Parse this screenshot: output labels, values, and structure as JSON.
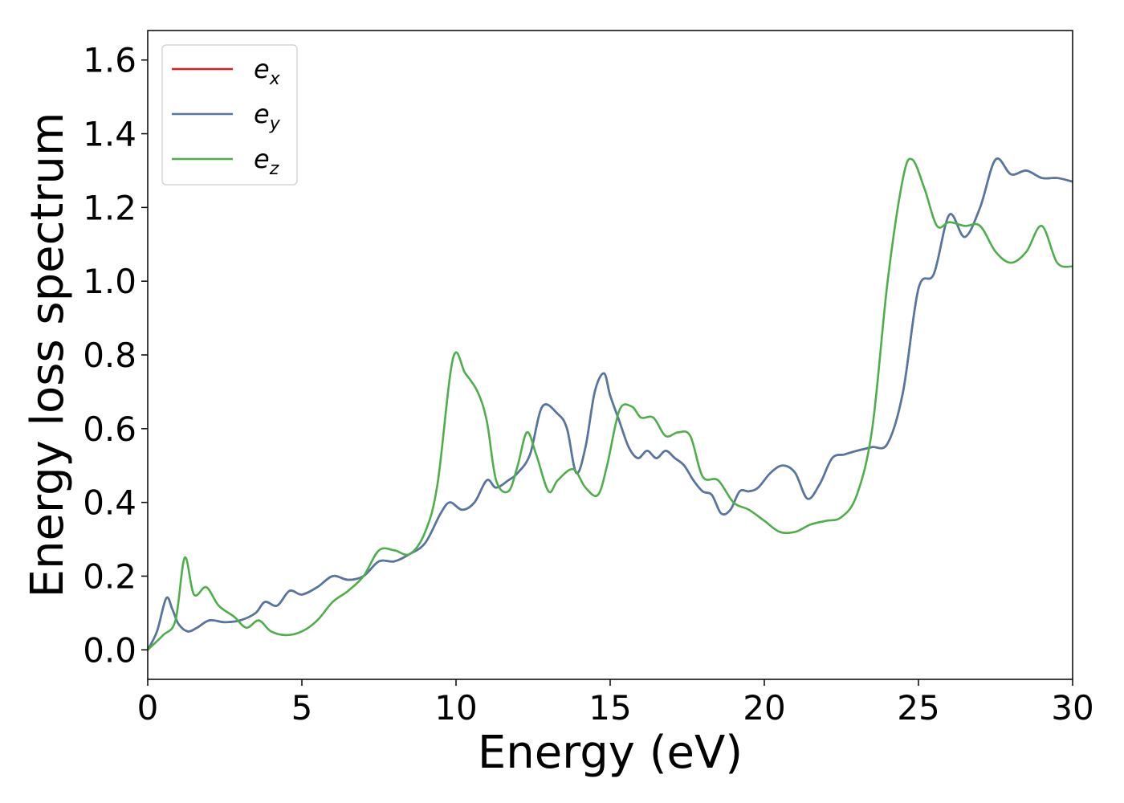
{
  "chart_data": {
    "type": "line",
    "xlabel": "Energy (eV)",
    "ylabel": "Energy loss spectrum",
    "xlim": [
      0,
      30
    ],
    "ylim": [
      -0.08,
      1.68
    ],
    "x_ticks": [
      0,
      5,
      10,
      15,
      20,
      25,
      30
    ],
    "x_tick_labels": [
      "0",
      "5",
      "10",
      "15",
      "20",
      "25",
      "30"
    ],
    "y_ticks": [
      0.0,
      0.2,
      0.4,
      0.6,
      0.8,
      1.0,
      1.2,
      1.4,
      1.6
    ],
    "y_tick_labels": [
      "0.0",
      "0.2",
      "0.4",
      "0.6",
      "0.8",
      "1.0",
      "1.2",
      "1.4",
      "1.6"
    ],
    "grid": false,
    "legend_position": "top-left",
    "series": [
      {
        "name": "e",
        "subscript": "x",
        "color": "#e41a1c",
        "x": [
          0,
          0.3,
          0.6,
          0.8,
          1.0,
          1.3,
          1.6,
          2.0,
          2.5,
          3.0,
          3.5,
          3.8,
          4.2,
          4.6,
          5.0,
          5.5,
          6.0,
          6.5,
          7.0,
          7.5,
          8.0,
          8.5,
          9.0,
          9.5,
          9.8,
          10.2,
          10.6,
          11.0,
          11.3,
          11.7,
          12.0,
          12.4,
          12.8,
          13.3,
          13.6,
          13.9,
          14.2,
          14.5,
          14.8,
          15.0,
          15.3,
          15.6,
          15.9,
          16.2,
          16.5,
          16.8,
          17.1,
          17.4,
          17.7,
          18.0,
          18.3,
          18.6,
          18.9,
          19.2,
          19.5,
          19.8,
          20.2,
          20.6,
          21.0,
          21.4,
          21.8,
          22.2,
          22.6,
          23.0,
          23.5,
          24.0,
          24.5,
          25.0,
          25.5,
          26.0,
          26.5,
          27.0,
          27.5,
          28.0,
          28.5,
          29.0,
          29.5,
          30.0
        ],
        "y": [
          0.0,
          0.05,
          0.14,
          0.11,
          0.07,
          0.05,
          0.06,
          0.08,
          0.075,
          0.08,
          0.1,
          0.13,
          0.12,
          0.16,
          0.15,
          0.17,
          0.2,
          0.19,
          0.2,
          0.24,
          0.24,
          0.26,
          0.29,
          0.37,
          0.4,
          0.38,
          0.4,
          0.46,
          0.44,
          0.46,
          0.48,
          0.53,
          0.66,
          0.64,
          0.6,
          0.48,
          0.55,
          0.7,
          0.75,
          0.69,
          0.62,
          0.55,
          0.52,
          0.54,
          0.52,
          0.54,
          0.52,
          0.5,
          0.46,
          0.43,
          0.42,
          0.37,
          0.38,
          0.43,
          0.43,
          0.44,
          0.48,
          0.5,
          0.48,
          0.41,
          0.45,
          0.52,
          0.53,
          0.54,
          0.55,
          0.56,
          0.7,
          0.98,
          1.02,
          1.18,
          1.12,
          1.2,
          1.33,
          1.29,
          1.3,
          1.28,
          1.28,
          1.27
        ]
      },
      {
        "name": "e",
        "subscript": "y",
        "color": "#4e79a7",
        "x": [
          0,
          0.3,
          0.6,
          0.8,
          1.0,
          1.3,
          1.6,
          2.0,
          2.5,
          3.0,
          3.5,
          3.8,
          4.2,
          4.6,
          5.0,
          5.5,
          6.0,
          6.5,
          7.0,
          7.5,
          8.0,
          8.5,
          9.0,
          9.5,
          9.8,
          10.2,
          10.6,
          11.0,
          11.3,
          11.7,
          12.0,
          12.4,
          12.8,
          13.3,
          13.6,
          13.9,
          14.2,
          14.5,
          14.8,
          15.0,
          15.3,
          15.6,
          15.9,
          16.2,
          16.5,
          16.8,
          17.1,
          17.4,
          17.7,
          18.0,
          18.3,
          18.6,
          18.9,
          19.2,
          19.5,
          19.8,
          20.2,
          20.6,
          21.0,
          21.4,
          21.8,
          22.2,
          22.6,
          23.0,
          23.5,
          24.0,
          24.5,
          25.0,
          25.5,
          26.0,
          26.5,
          27.0,
          27.5,
          28.0,
          28.5,
          29.0,
          29.5,
          30.0
        ],
        "y": [
          0.0,
          0.05,
          0.14,
          0.11,
          0.07,
          0.05,
          0.06,
          0.08,
          0.075,
          0.08,
          0.1,
          0.13,
          0.12,
          0.16,
          0.15,
          0.17,
          0.2,
          0.19,
          0.2,
          0.24,
          0.24,
          0.26,
          0.29,
          0.37,
          0.4,
          0.38,
          0.4,
          0.46,
          0.44,
          0.46,
          0.48,
          0.53,
          0.66,
          0.64,
          0.6,
          0.48,
          0.55,
          0.7,
          0.75,
          0.69,
          0.62,
          0.55,
          0.52,
          0.54,
          0.52,
          0.54,
          0.52,
          0.5,
          0.46,
          0.43,
          0.42,
          0.37,
          0.38,
          0.43,
          0.43,
          0.44,
          0.48,
          0.5,
          0.48,
          0.41,
          0.45,
          0.52,
          0.53,
          0.54,
          0.55,
          0.56,
          0.7,
          0.98,
          1.02,
          1.18,
          1.12,
          1.2,
          1.33,
          1.29,
          1.3,
          1.28,
          1.28,
          1.27
        ]
      },
      {
        "name": "e",
        "subscript": "z",
        "color": "#4daf4a",
        "x": [
          0,
          0.5,
          0.9,
          1.2,
          1.5,
          1.9,
          2.3,
          2.8,
          3.2,
          3.6,
          4.0,
          4.5,
          5.0,
          5.5,
          6.0,
          6.5,
          7.0,
          7.5,
          8.0,
          8.5,
          9.0,
          9.4,
          9.9,
          10.3,
          10.7,
          11.0,
          11.3,
          11.7,
          12.0,
          12.3,
          12.6,
          13.0,
          13.3,
          13.8,
          14.2,
          14.6,
          14.9,
          15.3,
          15.7,
          16.0,
          16.4,
          16.8,
          17.2,
          17.6,
          18.0,
          18.5,
          19.0,
          19.5,
          20.0,
          20.5,
          21.0,
          21.5,
          22.0,
          22.5,
          23.0,
          23.5,
          24.0,
          24.5,
          24.8,
          25.2,
          25.6,
          26.0,
          26.5,
          27.0,
          27.5,
          28.0,
          28.5,
          29.0,
          29.5,
          30.0
        ],
        "y": [
          0.0,
          0.04,
          0.08,
          0.25,
          0.15,
          0.17,
          0.12,
          0.09,
          0.06,
          0.08,
          0.05,
          0.04,
          0.05,
          0.08,
          0.13,
          0.16,
          0.2,
          0.27,
          0.27,
          0.26,
          0.32,
          0.45,
          0.79,
          0.75,
          0.7,
          0.62,
          0.46,
          0.43,
          0.5,
          0.59,
          0.53,
          0.43,
          0.46,
          0.49,
          0.44,
          0.42,
          0.5,
          0.65,
          0.66,
          0.63,
          0.63,
          0.58,
          0.59,
          0.58,
          0.47,
          0.46,
          0.4,
          0.38,
          0.35,
          0.32,
          0.32,
          0.34,
          0.35,
          0.36,
          0.42,
          0.6,
          1.0,
          1.28,
          1.33,
          1.25,
          1.15,
          1.16,
          1.15,
          1.15,
          1.08,
          1.05,
          1.08,
          1.15,
          1.05,
          1.04
        ]
      }
    ]
  }
}
